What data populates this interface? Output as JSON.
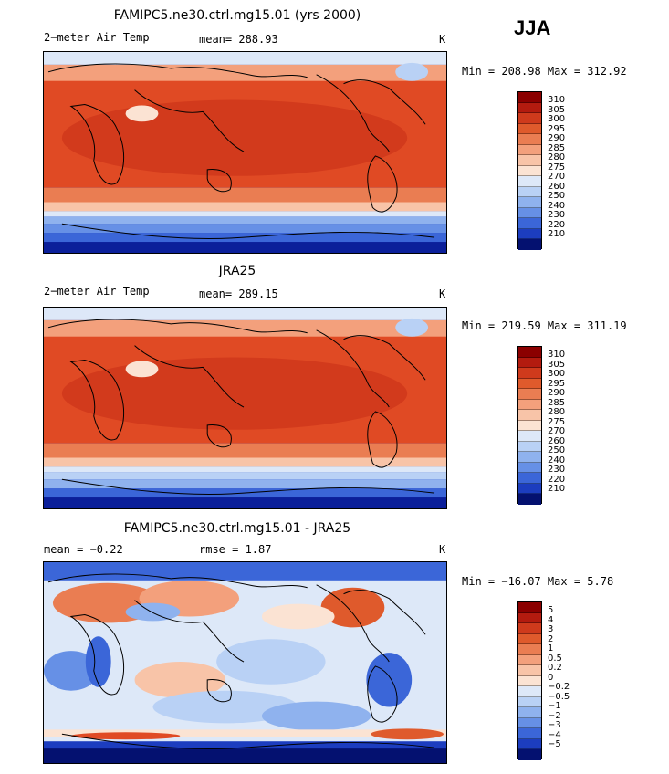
{
  "season": "JJA",
  "panels": [
    {
      "title": "FAMIPC5.ne30.ctrl.mg15.01 (yrs 2000)",
      "variable": "2−meter Air Temp",
      "stat": "mean=  288.93",
      "unit": "K",
      "minmax": "Min = 208.98 Max = 312.92",
      "levels": [
        "310",
        "305",
        "300",
        "295",
        "290",
        "285",
        "280",
        "275",
        "270",
        "260",
        "250",
        "240",
        "230",
        "220",
        "210"
      ]
    },
    {
      "title": "JRA25",
      "variable": "2−meter Air Temp",
      "stat": "mean=  289.15",
      "unit": "K",
      "minmax": "Min = 219.59 Max = 311.19",
      "levels": [
        "310",
        "305",
        "300",
        "295",
        "290",
        "285",
        "280",
        "275",
        "270",
        "260",
        "250",
        "240",
        "230",
        "220",
        "210"
      ]
    },
    {
      "title": "FAMIPC5.ne30.ctrl.mg15.01 - JRA25",
      "variable": "mean =   −0.22",
      "stat": "rmse =    1.87",
      "unit": "K",
      "minmax": "Min = −16.07 Max =   5.78",
      "levels": [
        "5",
        "4",
        "3",
        "2",
        "1",
        "0.5",
        "0.2",
        "0",
        "−0.2",
        "−0.5",
        "−1",
        "−2",
        "−3",
        "−4",
        "−5"
      ]
    }
  ],
  "colors": {
    "palette": [
      "#8b0000",
      "#b31b0f",
      "#cf3a1c",
      "#df5a2c",
      "#ea7d52",
      "#f3a07c",
      "#f8c4a8",
      "#fbe3d3",
      "#dde8f8",
      "#b9d1f5",
      "#8fb2ee",
      "#6690e6",
      "#3b66d8",
      "#1c3dbf",
      "#0b1f9a",
      "#041170"
    ],
    "ocean_warm": "#e04a24",
    "land_outline": "#000000"
  }
}
